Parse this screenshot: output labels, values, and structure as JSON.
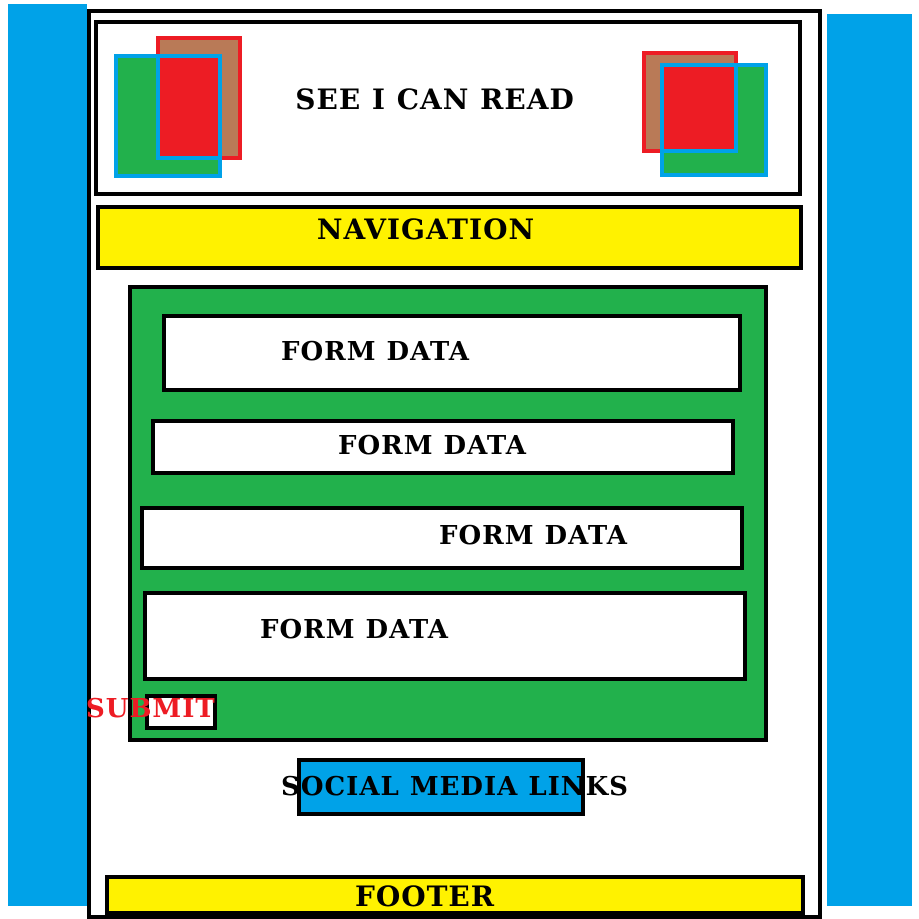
{
  "header": {
    "title": "SEE I CAN READ"
  },
  "navigation": {
    "label": "NAVIGATION"
  },
  "form": {
    "fields": [
      {
        "label": "FORM DATA"
      },
      {
        "label": "FORM DATA"
      },
      {
        "label": "FORM DATA"
      },
      {
        "label": "FORM DATA"
      }
    ],
    "submit_label": "SUBMIT"
  },
  "social": {
    "label": "SOCIAL MEDIA LINKS"
  },
  "footer": {
    "label": "FOOTER"
  },
  "colors": {
    "side_bar": "#00a2e8",
    "nav_bg": "#fff200",
    "form_bg": "#22b14c",
    "logo_red": "#ed1c24",
    "logo_brown": "#b97a57",
    "logo_green": "#22b14c",
    "logo_blue": "#00a2e8",
    "submit_text": "#ed1c24"
  },
  "icons": {
    "left_logo": "logo-left-icon",
    "right_logo": "logo-right-icon"
  }
}
